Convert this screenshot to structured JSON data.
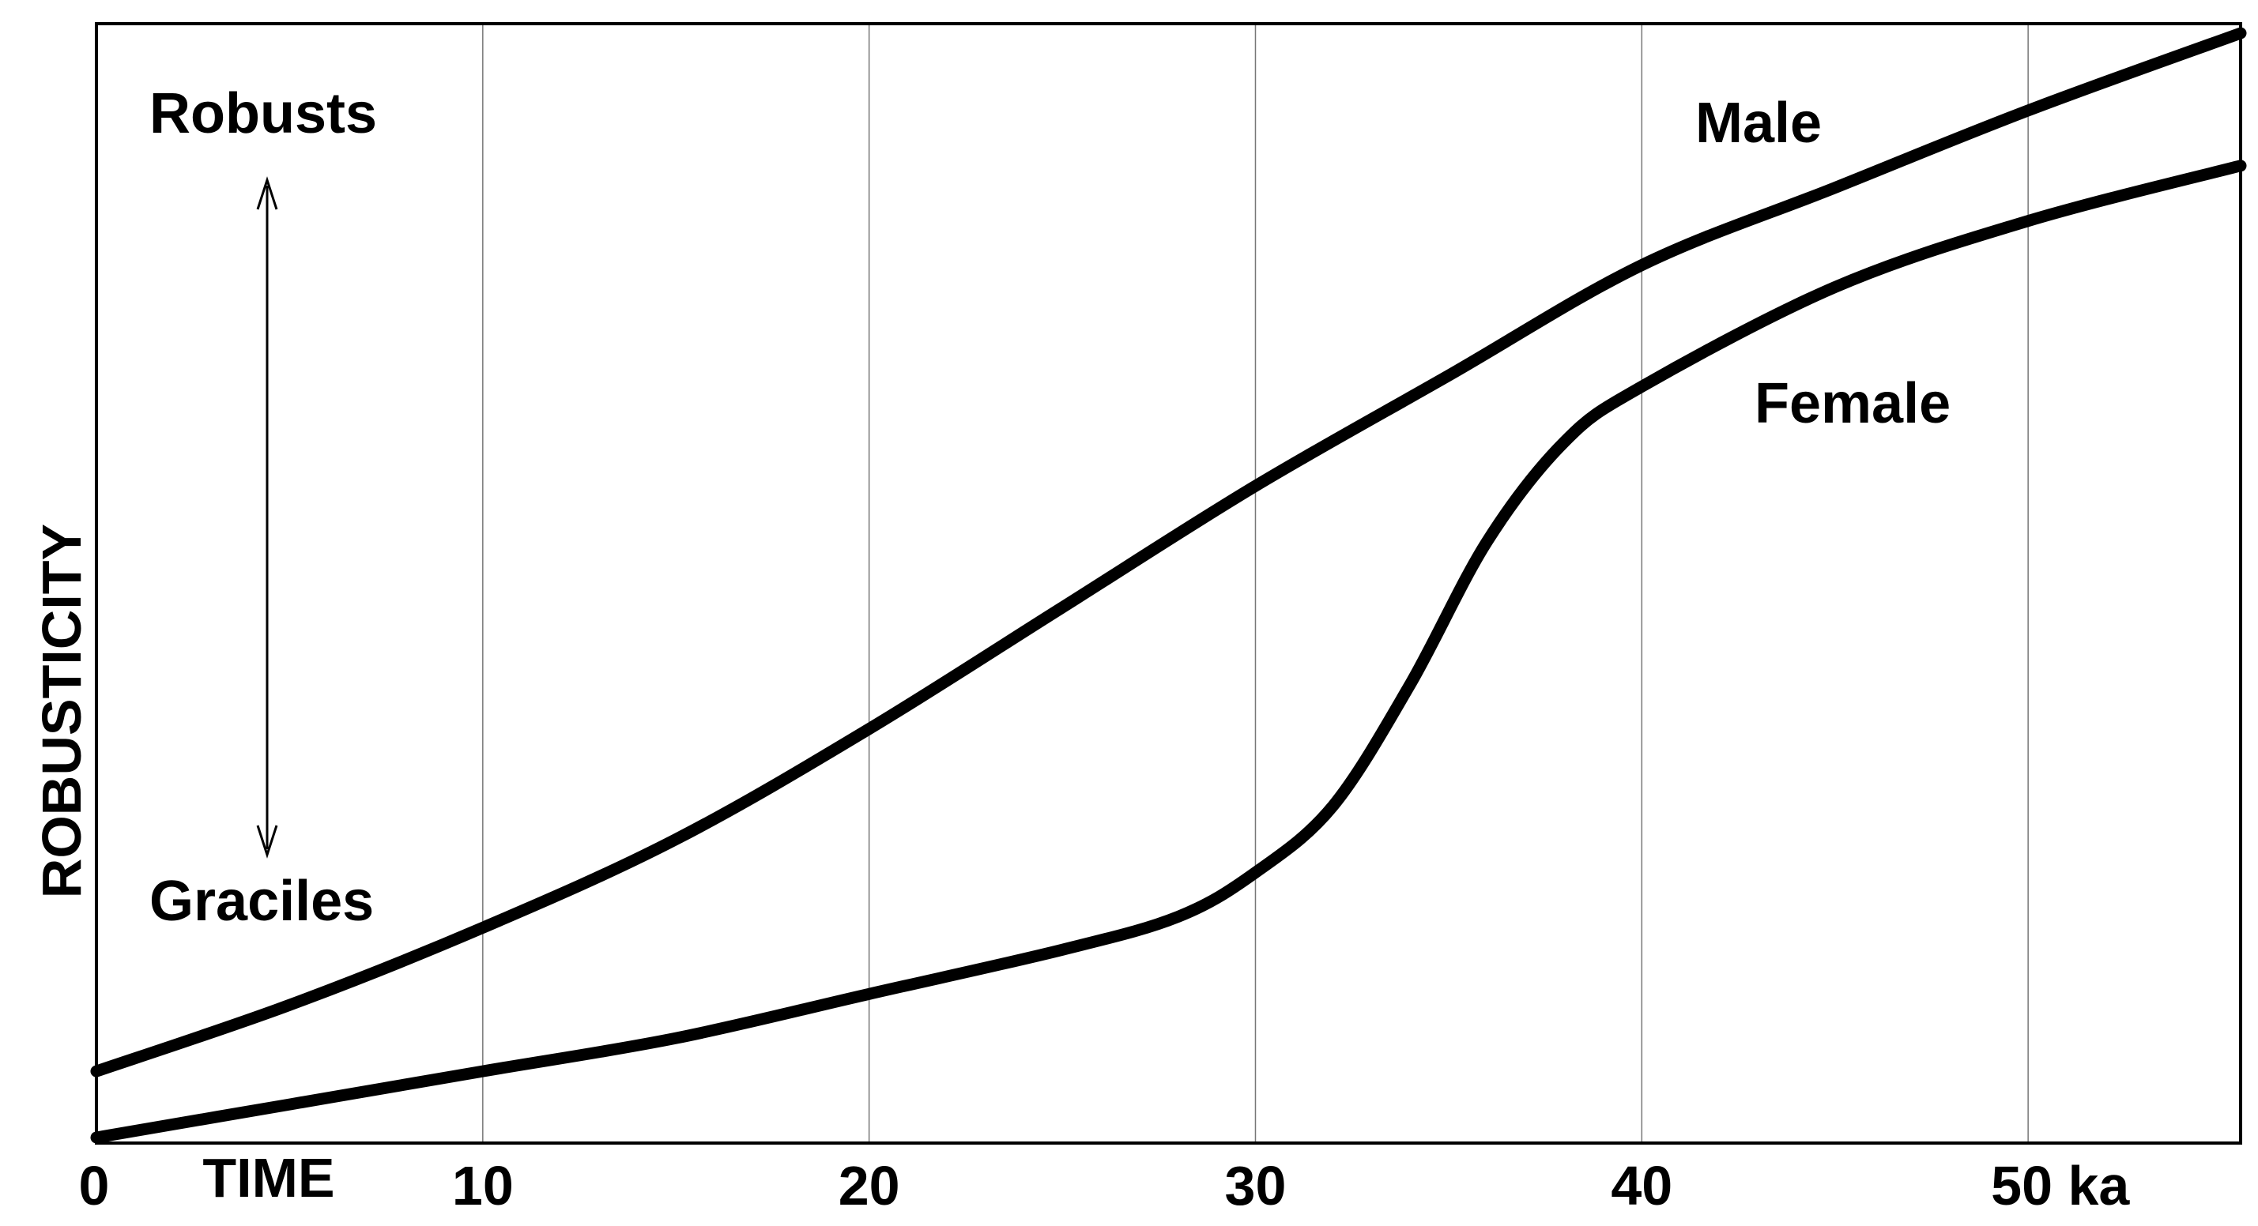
{
  "chart_data": {
    "type": "line",
    "title": "",
    "xlabel": "TIME",
    "ylabel": "ROBUSTICITY",
    "xlim": [
      0,
      55.5
    ],
    "ylim": [
      0,
      100
    ],
    "x_ticks": [
      {
        "value": 0,
        "label": "0"
      },
      {
        "value": 10,
        "label": "10"
      },
      {
        "value": 20,
        "label": "20"
      },
      {
        "value": 30,
        "label": "30"
      },
      {
        "value": 40,
        "label": "40"
      },
      {
        "value": 50,
        "label": "50 ka"
      }
    ],
    "grid": "vertical at x ticks",
    "y_scale_labels": {
      "top": "Robusts",
      "bottom": "Graciles"
    },
    "series": [
      {
        "name": "Male",
        "x": [
          0,
          5,
          10,
          15,
          20,
          25,
          30,
          35,
          40,
          45,
          50,
          55.5
        ],
        "values": [
          6,
          12,
          19,
          27,
          37,
          48,
          59,
          69,
          79,
          86,
          93,
          100
        ]
      },
      {
        "name": "Female",
        "x": [
          0,
          5,
          10,
          15,
          20,
          25,
          28,
          30,
          32,
          34,
          36,
          38,
          40,
          45,
          50,
          55.5
        ],
        "values": [
          0,
          3,
          6,
          9,
          13,
          17,
          20,
          24,
          30,
          41,
          54,
          63,
          68,
          77,
          83,
          88
        ]
      }
    ]
  }
}
